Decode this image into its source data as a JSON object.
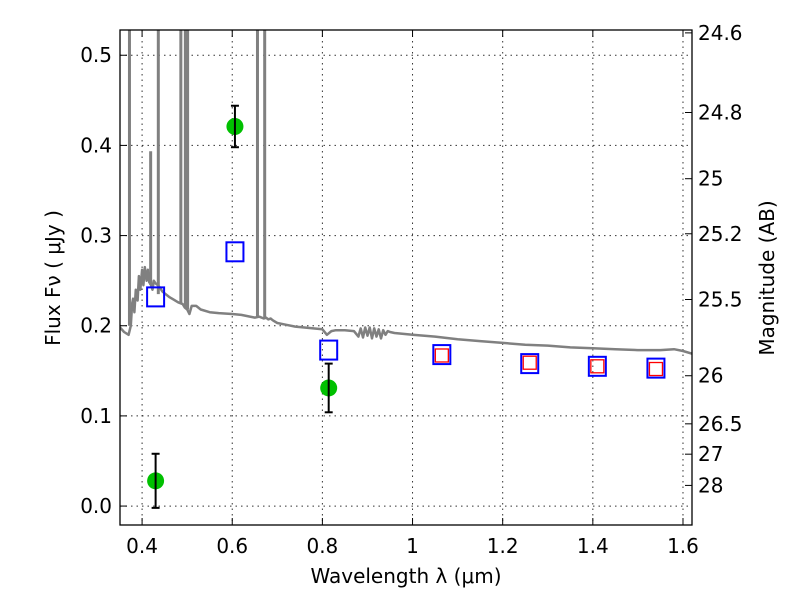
{
  "chart_data": {
    "type": "scatter",
    "title": "",
    "xlabel": "Wavelength  λ (μm)",
    "ylabel": "Flux  Fν  ( μJy )",
    "ylabel_right": "Magnitude (AB)",
    "xlim": [
      0.351,
      1.62
    ],
    "ylim": [
      -0.021,
      0.528
    ],
    "grid": true,
    "x_ticks": [
      0.4,
      0.6,
      0.8,
      1.0,
      1.2,
      1.4,
      1.6
    ],
    "x_tick_labels": [
      "0.4",
      "0.6",
      "0.8",
      "1",
      "1.2",
      "1.4",
      "1.6"
    ],
    "y_ticks": [
      0.0,
      0.1,
      0.2,
      0.3,
      0.4,
      0.5
    ],
    "y_tick_labels": [
      "0.0",
      "0.1",
      "0.2",
      "0.3",
      "0.4",
      "0.5"
    ],
    "right_ticks": [
      {
        "label": "24.6",
        "mag": 24.6
      },
      {
        "label": "24.8",
        "mag": 24.8
      },
      {
        "label": "25",
        "mag": 25.0
      },
      {
        "label": "25.2",
        "mag": 25.2
      },
      {
        "label": "25.5",
        "mag": 25.5
      },
      {
        "label": "26",
        "mag": 26.0
      },
      {
        "label": "26.5",
        "mag": 26.5
      },
      {
        "label": "27",
        "mag": 27.0
      },
      {
        "label": "28",
        "mag": 28.0
      }
    ],
    "series": [
      {
        "name": "model spectrum",
        "kind": "line",
        "color": "#808080",
        "x": [
          0.351,
          0.36,
          0.37,
          0.375,
          0.378,
          0.38,
          0.383,
          0.386,
          0.39,
          0.393,
          0.396,
          0.4,
          0.403,
          0.406,
          0.41,
          0.413,
          0.416,
          0.418,
          0.42,
          0.423,
          0.426,
          0.43,
          0.435,
          0.44,
          0.445,
          0.45,
          0.46,
          0.47,
          0.48,
          0.49,
          0.495,
          0.5,
          0.505,
          0.51,
          0.52,
          0.53,
          0.55,
          0.57,
          0.6,
          0.62,
          0.65,
          0.66,
          0.67,
          0.675,
          0.68,
          0.685,
          0.69,
          0.7,
          0.72,
          0.74,
          0.76,
          0.78,
          0.8,
          0.81,
          0.82,
          0.83,
          0.85,
          0.87,
          0.88,
          0.885,
          0.89,
          0.895,
          0.9,
          0.905,
          0.91,
          0.915,
          0.92,
          0.925,
          0.93,
          0.935,
          0.94,
          0.945,
          0.95,
          0.96,
          0.98,
          1.0,
          1.05,
          1.1,
          1.15,
          1.2,
          1.25,
          1.3,
          1.35,
          1.4,
          1.45,
          1.5,
          1.55,
          1.58,
          1.6,
          1.62
        ],
        "y": [
          0.198,
          0.193,
          0.19,
          0.2,
          0.225,
          0.23,
          0.215,
          0.24,
          0.228,
          0.255,
          0.24,
          0.262,
          0.245,
          0.265,
          0.25,
          0.262,
          0.248,
          0.258,
          0.245,
          0.24,
          0.25,
          0.247,
          0.245,
          0.242,
          0.238,
          0.236,
          0.232,
          0.229,
          0.226,
          0.224,
          0.22,
          0.218,
          0.213,
          0.222,
          0.222,
          0.218,
          0.215,
          0.214,
          0.213,
          0.212,
          0.209,
          0.21,
          0.208,
          0.209,
          0.207,
          0.208,
          0.206,
          0.203,
          0.201,
          0.199,
          0.198,
          0.197,
          0.196,
          0.19,
          0.194,
          0.195,
          0.195,
          0.194,
          0.188,
          0.197,
          0.187,
          0.198,
          0.189,
          0.198,
          0.186,
          0.197,
          0.188,
          0.196,
          0.186,
          0.195,
          0.19,
          0.194,
          0.193,
          0.192,
          0.191,
          0.19,
          0.188,
          0.185,
          0.183,
          0.181,
          0.179,
          0.178,
          0.176,
          0.175,
          0.174,
          0.173,
          0.173,
          0.174,
          0.172,
          0.169
        ]
      },
      {
        "name": "emission lines",
        "kind": "vlines",
        "color": "#808080",
        "lines": [
          {
            "x": 0.372,
            "ymin": 0.2,
            "ymax": 0.528
          },
          {
            "x": 0.419,
            "ymin": 0.245,
            "ymax": 0.388
          },
          {
            "x": 0.436,
            "ymin": 0.235,
            "ymax": 0.528
          },
          {
            "x": 0.486,
            "ymin": 0.225,
            "ymax": 0.528
          },
          {
            "x": 0.496,
            "ymin": 0.22,
            "ymax": 0.528
          },
          {
            "x": 0.501,
            "ymin": 0.218,
            "ymax": 0.528
          },
          {
            "x": 0.656,
            "ymin": 0.209,
            "ymax": 0.528
          },
          {
            "x": 0.672,
            "ymin": 0.208,
            "ymax": 0.528
          }
        ]
      },
      {
        "name": "observed photometry",
        "kind": "errorbar",
        "color": "#00c000",
        "x": [
          0.43,
          0.606,
          0.814
        ],
        "y": [
          0.028,
          0.421,
          0.131
        ],
        "yerr": [
          0.03,
          0.023,
          0.027
        ]
      },
      {
        "name": "model photometry (blue)",
        "kind": "square",
        "color": "#0000ff",
        "x": [
          0.43,
          0.606,
          0.814,
          1.065,
          1.26,
          1.41,
          1.54
        ],
        "y": [
          0.232,
          0.282,
          0.173,
          0.168,
          0.158,
          0.155,
          0.153
        ]
      },
      {
        "name": "model photometry (red)",
        "kind": "square-small",
        "color": "#ff0000",
        "x": [
          1.065,
          1.26,
          1.41,
          1.54
        ],
        "y": [
          0.167,
          0.159,
          0.155,
          0.152
        ]
      }
    ]
  }
}
